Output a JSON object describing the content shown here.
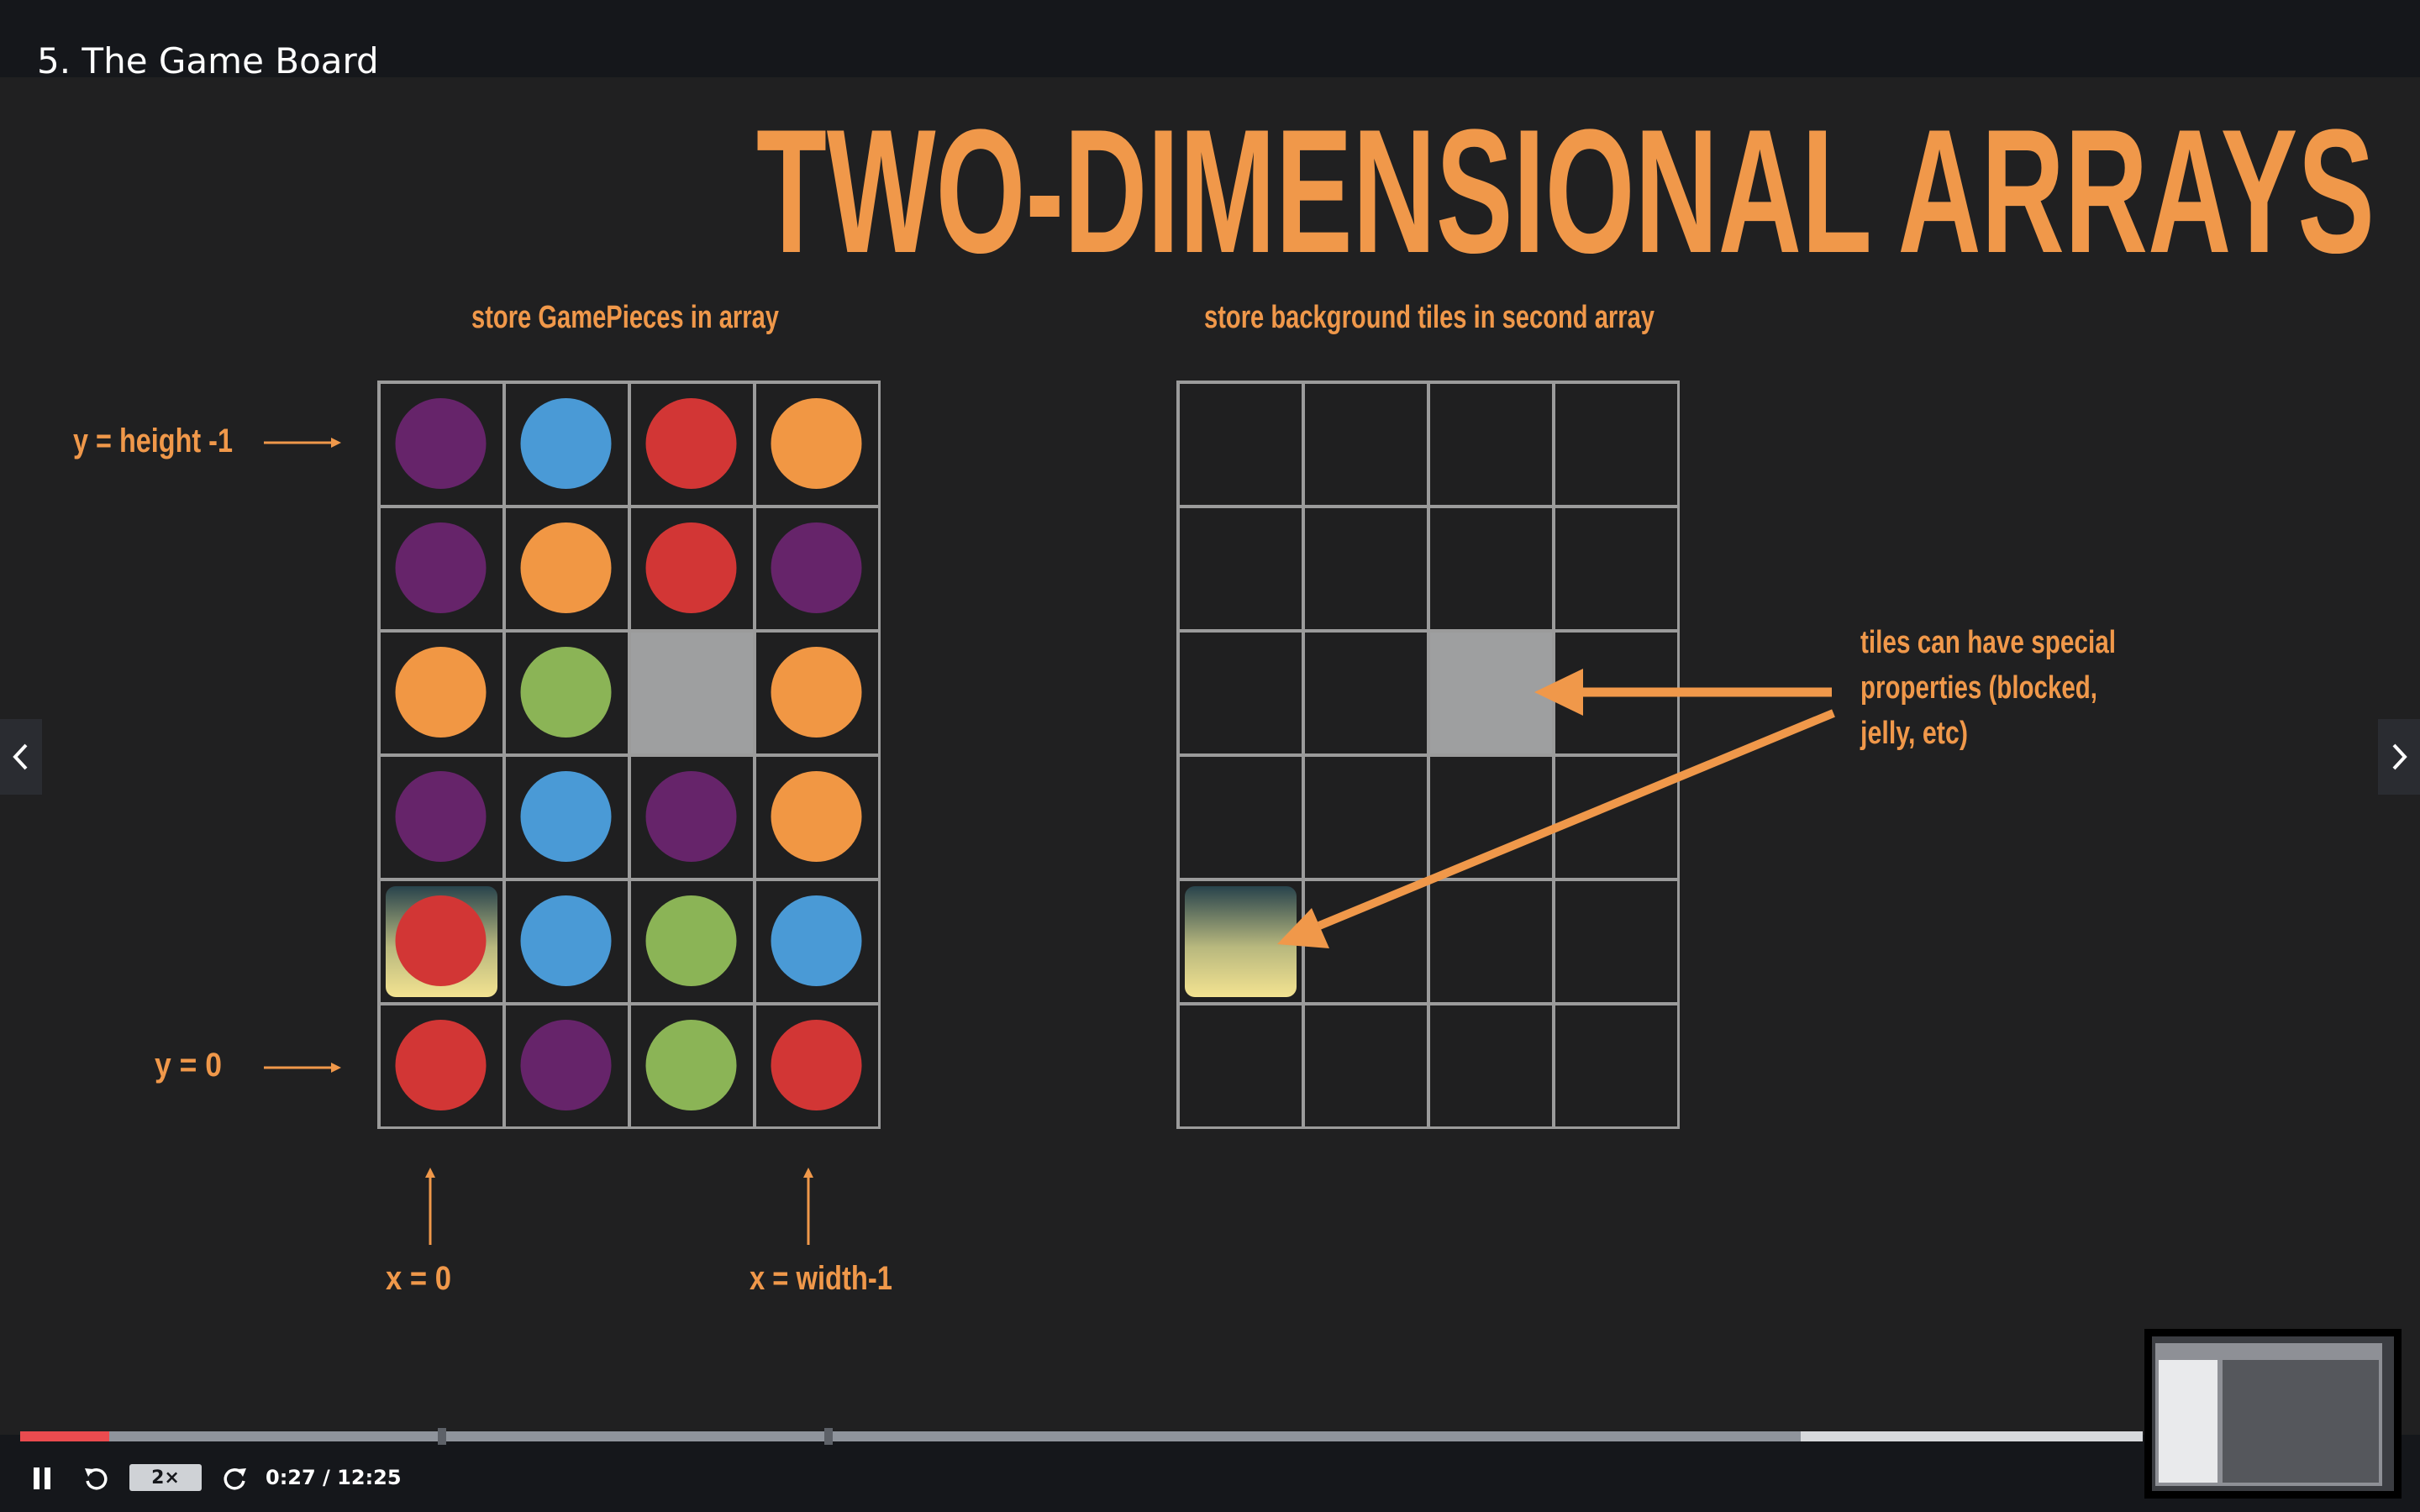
{
  "lecture": {
    "title": "5. The Game Board"
  },
  "slide": {
    "title": "TWO-DIMENSIONAL ARRAYS",
    "left_caption": "store GamePieces in array",
    "right_caption": "store background tiles in second array",
    "label_y_top": "y = height -1",
    "label_y_bottom": "y = 0",
    "label_x_left": "x = 0",
    "label_x_right": "x = width-1",
    "note_lines": [
      "tiles can have special",
      "properties (blocked,",
      "jelly, etc)"
    ],
    "colors": {
      "accent": "#f0984a",
      "purple": "#66246a",
      "blue": "#4a9ad6",
      "red": "#d23635",
      "orange": "#f19744",
      "green": "#8bb456",
      "blocked": "#9e9fa0",
      "grid": "#9b9b9b"
    },
    "pieces_grid": [
      [
        "purple",
        "blue",
        "red",
        "orange"
      ],
      [
        "purple",
        "orange",
        "red",
        "purple"
      ],
      [
        "orange",
        "green",
        "blocked",
        "orange"
      ],
      [
        "purple",
        "blue",
        "purple",
        "orange"
      ],
      [
        "jelly-red",
        "blue",
        "green",
        "blue"
      ],
      [
        "red",
        "purple",
        "green",
        "red"
      ]
    ],
    "tiles_grid": [
      [
        "empty",
        "empty",
        "empty",
        "empty"
      ],
      [
        "empty",
        "empty",
        "empty",
        "empty"
      ],
      [
        "empty",
        "empty",
        "blocked",
        "empty"
      ],
      [
        "empty",
        "empty",
        "empty",
        "empty"
      ],
      [
        "jelly",
        "empty",
        "empty",
        "empty"
      ],
      [
        "empty",
        "empty",
        "empty",
        "empty"
      ]
    ]
  },
  "player": {
    "speed_label": "2×",
    "time_label": "0:27 / 12:25",
    "progress": 0.042,
    "buffered": 0.839,
    "icons": [
      "pause-icon",
      "rewind-icon",
      "forward-icon",
      "chevron-left-icon",
      "chevron-right-icon"
    ]
  }
}
